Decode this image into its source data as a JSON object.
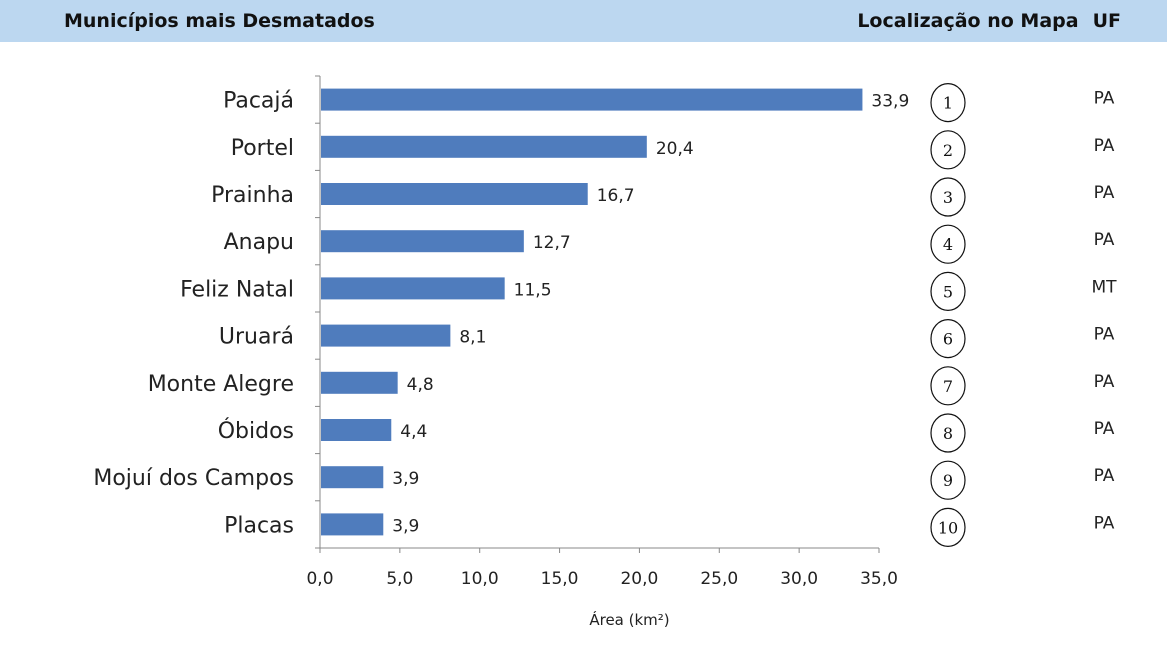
{
  "header": {
    "title": "Municípios mais Desmatados",
    "map_location_label": "Localização no Mapa",
    "uf_label": "UF"
  },
  "chart_data": {
    "type": "bar",
    "orientation": "horizontal",
    "categories": [
      "Pacajá",
      "Portel",
      "Prainha",
      "Anapu",
      "Feliz Natal",
      "Uruará",
      "Monte Alegre",
      "Óbidos",
      "Mojuí dos Campos",
      "Placas"
    ],
    "values": [
      33.9,
      20.4,
      16.7,
      12.7,
      11.5,
      8.1,
      4.8,
      4.4,
      3.9,
      3.9
    ],
    "value_labels": [
      "33,9",
      "20,4",
      "16,7",
      "12,7",
      "11,5",
      "8,1",
      "4,8",
      "4,4",
      "3,9",
      "3,9"
    ],
    "xlabel": "Área (km²)",
    "xlim": [
      0,
      35
    ],
    "xticks": [
      "0,0",
      "5,0",
      "10,0",
      "15,0",
      "20,0",
      "25,0",
      "30,0",
      "35,0"
    ],
    "bar_color": "#4f7cbd",
    "grid": false,
    "map_numbers": [
      "1",
      "2",
      "3",
      "4",
      "5",
      "6",
      "7",
      "8",
      "9",
      "10"
    ],
    "uf": [
      "PA",
      "PA",
      "PA",
      "PA",
      "MT",
      "PA",
      "PA",
      "PA",
      "PA",
      "PA"
    ]
  }
}
